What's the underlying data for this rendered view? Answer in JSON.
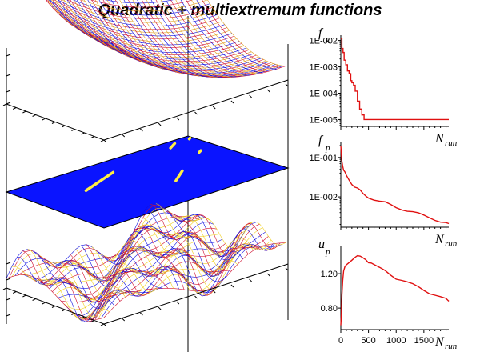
{
  "title": "Quadratic + multiextremum functions",
  "colors": {
    "surface_blue": "#1010e0",
    "surface_red": "#d01030",
    "surface_yellow": "#f0d020",
    "plane_blue": "#0a14ff",
    "line_red": "#e01010"
  },
  "chart_data": [
    {
      "type": "surface",
      "surface": "quadratic",
      "colors": [
        "#1010e0",
        "#d01030",
        "#e0a020"
      ]
    },
    {
      "type": "contour",
      "surface": "projection plane",
      "fill_color": "#0a14ff",
      "mark_color": "#ffee44"
    },
    {
      "type": "surface",
      "surface": "multiextremum",
      "colors": [
        "#1010e0",
        "#d01030",
        "#f0d020"
      ]
    },
    {
      "type": "line",
      "ylabel": "f",
      "ylabel_sub": "k",
      "xlabel": "N",
      "xlabel_sub": "run",
      "yscale": "log",
      "ylim": [
        5.5e-06,
        0.012
      ],
      "xlim": [
        0,
        1950
      ],
      "yticks": [
        "1E-002",
        "1E-003",
        "1E-004",
        "1E-005"
      ],
      "ytick_values": [
        0.01,
        0.001,
        0.0001,
        1e-05
      ],
      "color": "#e01010",
      "x": [
        0,
        20,
        40,
        60,
        90,
        120,
        150,
        180,
        200,
        230,
        260,
        300,
        340,
        380,
        420,
        1950
      ],
      "y": [
        0.012,
        0.005,
        0.0035,
        0.0018,
        0.0012,
        0.0007,
        0.00055,
        0.0003,
        0.00025,
        0.0002,
        0.00012,
        5e-05,
        2.5e-05,
        1.5e-05,
        1e-05,
        1e-05
      ]
    },
    {
      "type": "line",
      "ylabel": "f",
      "ylabel_sub": "p",
      "xlabel": "N",
      "xlabel_sub": "run",
      "yscale": "log",
      "ylim": [
        0.0017,
        0.2
      ],
      "xlim": [
        0,
        1950
      ],
      "yticks": [
        "1E-001",
        "1E-002"
      ],
      "ytick_values": [
        0.1,
        0.01
      ],
      "color": "#e01010",
      "x": [
        0,
        10,
        20,
        35,
        50,
        75,
        100,
        150,
        200,
        250,
        300,
        350,
        400,
        450,
        500,
        600,
        700,
        800,
        900,
        1000,
        1100,
        1200,
        1300,
        1400,
        1500,
        1600,
        1700,
        1800,
        1900,
        1950
      ],
      "y": [
        0.2,
        0.12,
        0.08,
        0.06,
        0.045,
        0.04,
        0.035,
        0.028,
        0.022,
        0.018,
        0.016,
        0.014,
        0.012,
        0.011,
        0.01,
        0.0085,
        0.0075,
        0.007,
        0.0062,
        0.0055,
        0.005,
        0.0045,
        0.0041,
        0.0037,
        0.0033,
        0.003,
        0.0027,
        0.0024,
        0.0022,
        0.0021
      ]
    },
    {
      "type": "line",
      "ylabel": "u",
      "ylabel_sub": "p",
      "xlabel": "N",
      "xlabel_sub": "run",
      "ylim": [
        0.55,
        1.48
      ],
      "xlim": [
        0,
        1950
      ],
      "yticks": [
        "1.20",
        "0.80"
      ],
      "ytick_values": [
        1.2,
        0.8
      ],
      "xticks": [
        "0",
        "500",
        "1000",
        "1500"
      ],
      "xtick_values": [
        0,
        500,
        1000,
        1500
      ],
      "color": "#e01010",
      "x": [
        0,
        10,
        20,
        35,
        50,
        75,
        100,
        150,
        200,
        250,
        300,
        350,
        400,
        450,
        500,
        550,
        600,
        700,
        800,
        900,
        1000,
        1100,
        1200,
        1300,
        1400,
        1500,
        1600,
        1700,
        1800,
        1900,
        1950
      ],
      "y": [
        0.6,
        0.72,
        0.95,
        1.12,
        1.22,
        1.27,
        1.3,
        1.34,
        1.37,
        1.39,
        1.4,
        1.39,
        1.38,
        1.37,
        1.34,
        1.33,
        1.3,
        1.26,
        1.23,
        1.19,
        1.15,
        1.13,
        1.1,
        1.07,
        1.04,
        1.01,
        0.98,
        0.96,
        0.93,
        0.9,
        0.88
      ]
    }
  ]
}
